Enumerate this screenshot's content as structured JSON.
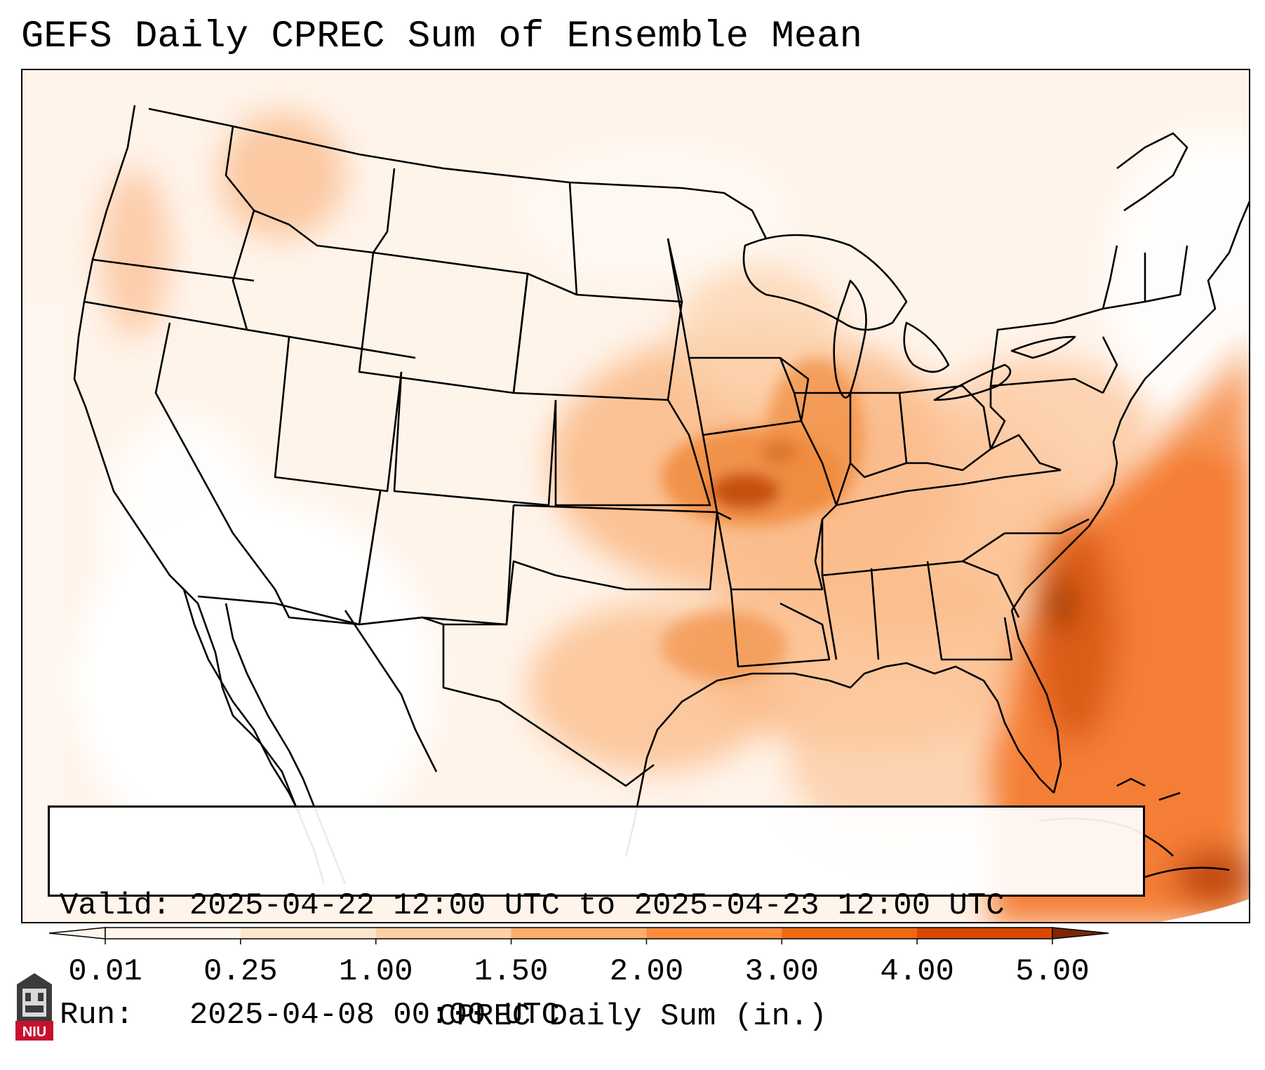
{
  "title": "GEFS Daily CPREC Sum of Ensemble Mean",
  "info": {
    "valid": "Valid: 2025-04-22 12:00 UTC to 2025-04-23 12:00 UTC",
    "run": "Run:   2025-04-08 00:00 UTC"
  },
  "colorbar": {
    "label": "CPREC Daily Sum (in.)",
    "ticks": [
      "0.01",
      "0.25",
      "1.00",
      "1.50",
      "2.00",
      "3.00",
      "4.00",
      "5.00"
    ],
    "colors": [
      "#fff5eb",
      "#fee6ce",
      "#fdd0a2",
      "#fdae6b",
      "#fd8d3c",
      "#f16913",
      "#d94801",
      "#8c2d04"
    ],
    "over_color": "#7f2704"
  },
  "logo": {
    "text": "NIU",
    "accent": "#c8102e"
  },
  "palette": {
    "land_low": "#fff1e4",
    "land_mid": "#fde3cc",
    "heavy": "#e8701f",
    "ocean_heavy": "#f07a2e"
  }
}
